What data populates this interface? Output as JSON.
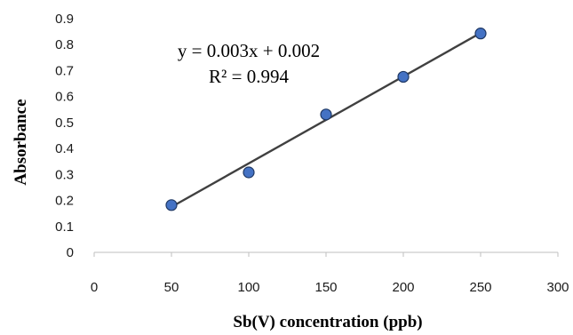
{
  "chart_data": {
    "type": "scatter",
    "xlabel": "Sb(V) concentration (ppb)",
    "ylabel": "Absorbance",
    "xlim": [
      0,
      300
    ],
    "ylim": [
      0,
      0.9
    ],
    "x_ticks": [
      "0",
      "50",
      "100",
      "150",
      "200",
      "250",
      "300"
    ],
    "y_ticks": [
      "0",
      "0.1",
      "0.2",
      "0.3",
      "0.4",
      "0.5",
      "0.6",
      "0.7",
      "0.8",
      "0.9"
    ],
    "grid": false,
    "series": [
      {
        "points": [
          {
            "x": 50,
            "y": 0.182
          },
          {
            "x": 100,
            "y": 0.308
          },
          {
            "x": 150,
            "y": 0.531
          },
          {
            "x": 200,
            "y": 0.676
          },
          {
            "x": 250,
            "y": 0.843
          }
        ],
        "marker_color": "#4472C4",
        "marker_edge": "#1F3864"
      }
    ],
    "trendline": {
      "type": "linear",
      "x_range": [
        50,
        250
      ],
      "y_range": [
        0.175,
        0.845
      ],
      "color": "#404040",
      "equation": "y = 0.003x + 0.002",
      "r_squared": "R² = 0.994"
    }
  }
}
